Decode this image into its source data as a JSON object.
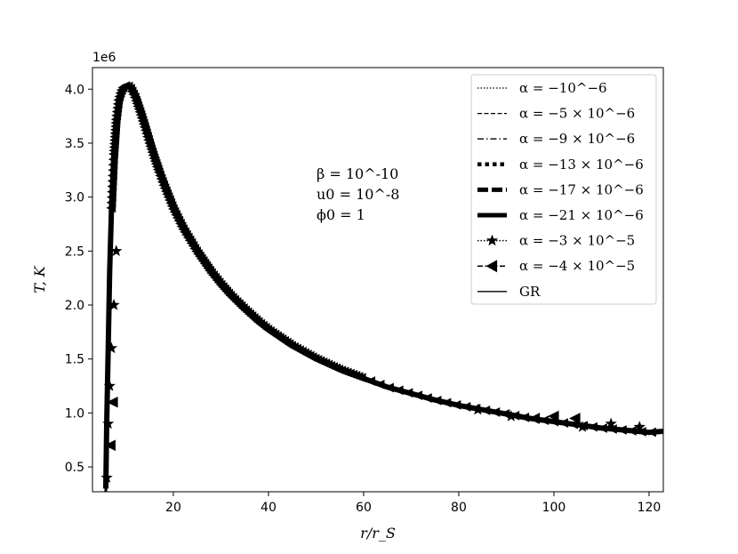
{
  "chart_data": {
    "type": "line",
    "title": "",
    "xlabel": "r/r_S",
    "ylabel": "T, K",
    "xlim": [
      3,
      123
    ],
    "ylim": [
      0.27,
      4.2
    ],
    "y_scale_label": "1e6",
    "x_ticks": [
      20,
      40,
      60,
      80,
      100,
      120
    ],
    "x_tick_labels": [
      "20",
      "40",
      "60",
      "80",
      "100",
      "120"
    ],
    "y_ticks": [
      0.5,
      1.0,
      1.5,
      2.0,
      2.5,
      3.0,
      3.5,
      4.0
    ],
    "y_tick_labels": [
      "0.5",
      "1.0",
      "1.5",
      "2.0",
      "2.5",
      "3.0",
      "3.5",
      "4.0"
    ],
    "grid": false,
    "legend_position": "top-right",
    "annotation": [
      "β = 10^-10",
      "u0 = 10^-8",
      "ϕ0 = 1"
    ],
    "series": [
      {
        "name": "α = −10^−6",
        "style": "dotted"
      },
      {
        "name": "α = −5 × 10^−6",
        "style": "dashed"
      },
      {
        "name": "α = −9 × 10^−6",
        "style": "dashdot"
      },
      {
        "name": "α = −13 × 10^−6",
        "style": "thick-dotted"
      },
      {
        "name": "α = −17 × 10^−6",
        "style": "thick-dashed"
      },
      {
        "name": "α = −21 × 10^−6",
        "style": "thick-solid"
      },
      {
        "name": "α = −3 × 10^−5",
        "style": "dotted-star"
      },
      {
        "name": "α = −4 × 10^−5",
        "style": "dashdot-triangle"
      },
      {
        "name": "GR",
        "style": "solid"
      }
    ],
    "curve": {
      "x": [
        5.8,
        6.0,
        6.3,
        6.6,
        7.0,
        7.5,
        8.0,
        8.5,
        9.0,
        9.5,
        10.0,
        10.5,
        11.0,
        12.0,
        13.0,
        14.0,
        15.0,
        16.0,
        17.0,
        18.0,
        19.0,
        20.0,
        22.0,
        25.0,
        28.0,
        30.0,
        32.0,
        35.0,
        38.0,
        40.0,
        45.0,
        50.0,
        55.0,
        60.0,
        65.0,
        70.0,
        75.0,
        80.0,
        85.0,
        90.0,
        95.0,
        100.0,
        105.0,
        110.0,
        115.0,
        120.0,
        123.0
      ],
      "y": [
        0.3,
        0.9,
        1.6,
        2.3,
        2.9,
        3.4,
        3.72,
        3.9,
        3.98,
        4.02,
        4.03,
        4.03,
        4.01,
        3.92,
        3.79,
        3.65,
        3.5,
        3.36,
        3.23,
        3.11,
        3.0,
        2.89,
        2.71,
        2.49,
        2.3,
        2.19,
        2.09,
        1.96,
        1.84,
        1.77,
        1.62,
        1.5,
        1.4,
        1.32,
        1.24,
        1.18,
        1.12,
        1.07,
        1.03,
        0.99,
        0.95,
        0.92,
        0.89,
        0.86,
        0.84,
        0.82,
        0.83
      ]
    },
    "star_markers": [
      {
        "x": 6.0,
        "y": 0.4
      },
      {
        "x": 6.3,
        "y": 0.9
      },
      {
        "x": 6.6,
        "y": 1.25
      },
      {
        "x": 7.0,
        "y": 1.6
      },
      {
        "x": 7.5,
        "y": 2.0
      },
      {
        "x": 8.0,
        "y": 2.5
      },
      {
        "x": 84.0,
        "y": 1.03
      },
      {
        "x": 91.0,
        "y": 0.97
      },
      {
        "x": 106.0,
        "y": 0.87
      },
      {
        "x": 112.0,
        "y": 0.9
      },
      {
        "x": 118.0,
        "y": 0.87
      }
    ],
    "triangle_markers": [
      {
        "x": 6.8,
        "y": 0.7
      },
      {
        "x": 7.3,
        "y": 1.1
      },
      {
        "x": 96.0,
        "y": 0.95
      },
      {
        "x": 100.0,
        "y": 0.97
      },
      {
        "x": 104.5,
        "y": 0.95
      }
    ]
  }
}
